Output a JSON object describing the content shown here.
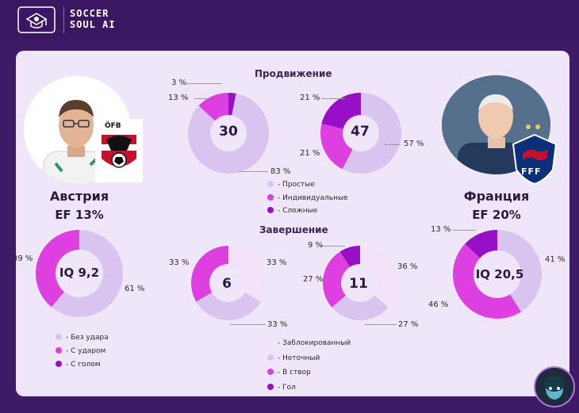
{
  "brand": {
    "line1": "SOCCER",
    "line2": "SOUL AI"
  },
  "colors": {
    "light": "#d9c4f0",
    "mid": "#de3fe0",
    "dark": "#9510c7",
    "pale": "#f4e3f8",
    "lilac": "#d9c4f0"
  },
  "sections": {
    "progression": "Продвижение",
    "finishing": "Завершение"
  },
  "left_team": {
    "name": "Австрия",
    "ef": "EF  13%",
    "iq": "IQ 9,2"
  },
  "right_team": {
    "name": "Франция",
    "ef": "EF  20%",
    "iq": "IQ 20,5"
  },
  "progression_left": {
    "center": "30",
    "labels": [
      "3 %",
      "13 %",
      "83 %"
    ]
  },
  "progression_right": {
    "center": "47",
    "labels": [
      "21 %",
      "21 %",
      "57 %"
    ]
  },
  "finishing_left": {
    "center": "6",
    "labels": [
      "33 %",
      "33 %",
      "33 %"
    ]
  },
  "finishing_right": {
    "center": "11",
    "labels": [
      "9 %",
      "36 %",
      "27 %",
      "27 %"
    ]
  },
  "iq_left": {
    "labels": [
      "39 %",
      "61 %"
    ]
  },
  "iq_right": {
    "labels": [
      "13 %",
      "41 %",
      "46 %"
    ]
  },
  "legend_progression": [
    "- Простые",
    "- Индивидуальные",
    "- Сложные"
  ],
  "legend_shots": [
    "- Без удара",
    "- С ударом",
    "- С голом"
  ],
  "legend_finishing": [
    "- Заблокированный",
    "- Неточный",
    "- В створ",
    "- Гол"
  ],
  "badges": {
    "austria": "ÖFB",
    "france": "FFF"
  }
}
